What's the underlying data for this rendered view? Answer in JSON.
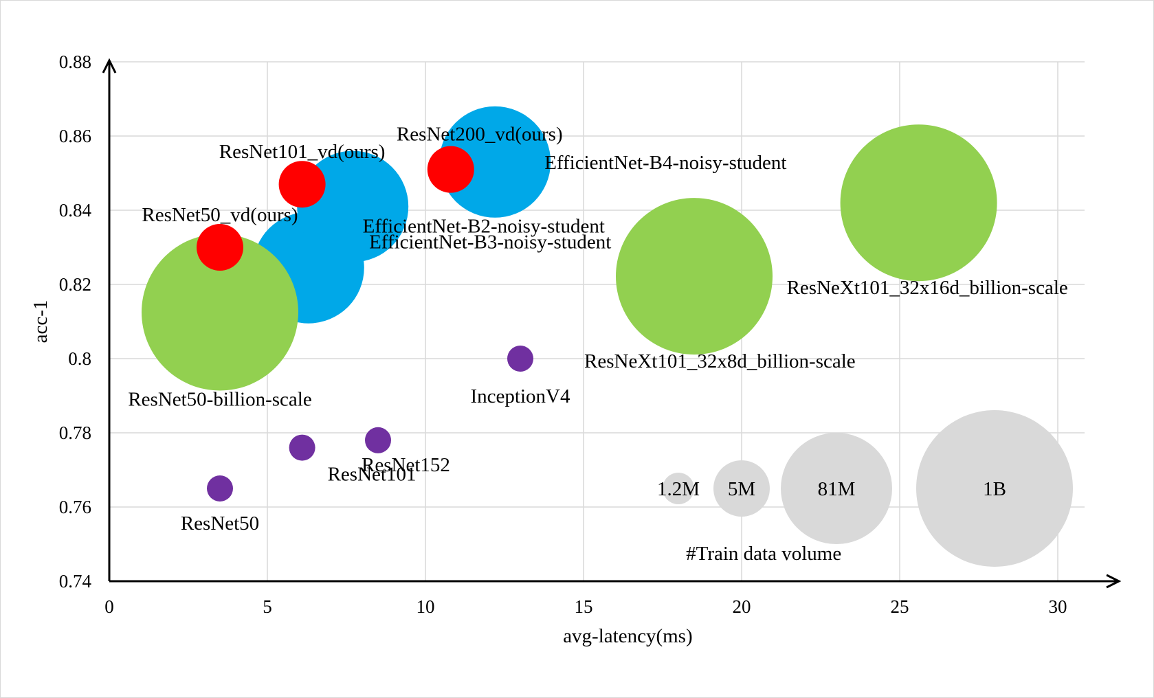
{
  "chart_data": {
    "type": "bubble",
    "xlabel": "avg-latency(ms)",
    "ylabel": "acc-1",
    "xlim": [
      0,
      32
    ],
    "ylim": [
      0.74,
      0.88
    ],
    "x_ticks": [
      0,
      5,
      10,
      15,
      20,
      25,
      30
    ],
    "y_ticks": [
      0.74,
      0.76,
      0.78,
      0.8,
      0.82,
      0.84,
      0.86,
      0.88
    ],
    "x_tick_labels": [
      "0",
      "5",
      "10",
      "15",
      "20",
      "25",
      "30"
    ],
    "y_tick_labels": [
      "0.74",
      "0.76",
      "0.78",
      "0.8",
      "0.82",
      "0.84",
      "0.86",
      "0.88"
    ],
    "grid": true,
    "colors": {
      "efficientnet": "#00a8e8",
      "billion_scale": "#92d050",
      "ours": "#ff0000",
      "baseline": "#7030a0",
      "legend": "#d9d9d9"
    },
    "series": [
      {
        "name": "EfficientNet-B2-noisy-student",
        "x": 6.3,
        "y": 0.8245,
        "volume": "81M",
        "color_key": "efficientnet"
      },
      {
        "name": "EfficientNet-B3-noisy-student",
        "x": 7.7,
        "y": 0.841,
        "volume": "81M",
        "color_key": "efficientnet"
      },
      {
        "name": "EfficientNet-B4-noisy-student",
        "x": 12.2,
        "y": 0.853,
        "volume": "81M",
        "color_key": "efficientnet"
      },
      {
        "name": "ResNet50-billion-scale",
        "x": 3.5,
        "y": 0.8125,
        "volume": "1B",
        "color_key": "billion_scale"
      },
      {
        "name": "ResNeXt101_32x8d_billion-scale",
        "x": 18.5,
        "y": 0.8222,
        "volume": "1B",
        "color_key": "billion_scale"
      },
      {
        "name": "ResNeXt101_32x16d_billion-scale",
        "x": 25.6,
        "y": 0.842,
        "volume": "1B",
        "color_key": "billion_scale"
      },
      {
        "name": "ResNet50_vd(ours)",
        "x": 3.5,
        "y": 0.83,
        "volume": "1.2M",
        "color_key": "ours"
      },
      {
        "name": "ResNet101_vd(ours)",
        "x": 6.1,
        "y": 0.847,
        "volume": "1.2M",
        "color_key": "ours"
      },
      {
        "name": "ResNet200_vd(ours)",
        "x": 10.8,
        "y": 0.851,
        "volume": "1.2M",
        "color_key": "ours"
      },
      {
        "name": "InceptionV4",
        "x": 13.0,
        "y": 0.8,
        "volume": "1.2M",
        "color_key": "baseline"
      },
      {
        "name": "ResNet50",
        "x": 3.5,
        "y": 0.765,
        "volume": "1.2M",
        "color_key": "baseline"
      },
      {
        "name": "ResNet101",
        "x": 6.1,
        "y": 0.776,
        "volume": "1.2M",
        "color_key": "baseline"
      },
      {
        "name": "ResNet152",
        "x": 8.5,
        "y": 0.778,
        "volume": "1.2M",
        "color_key": "baseline"
      }
    ],
    "legend": {
      "title": "#Train data volume",
      "placement": "bottom-right",
      "entries": [
        {
          "label": "1.2M",
          "x": 18.0,
          "y": 0.765
        },
        {
          "label": "5M",
          "x": 20.0,
          "y": 0.765
        },
        {
          "label": "81M",
          "x": 23.0,
          "y": 0.765
        },
        {
          "label": "1B",
          "x": 28.0,
          "y": 0.765
        }
      ]
    }
  }
}
